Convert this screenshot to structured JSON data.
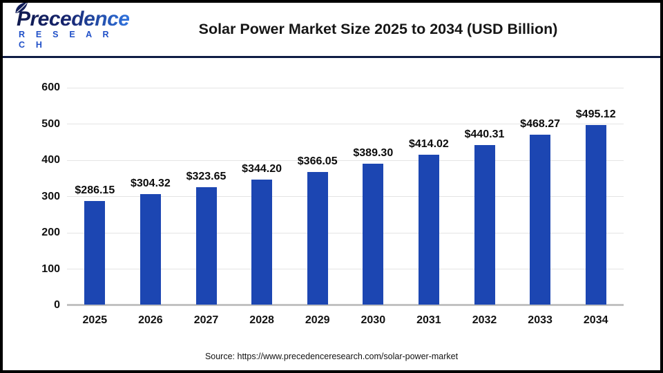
{
  "header": {
    "logo_line1": "Precedence",
    "logo_line2": "R E S E A R C H",
    "title": "Solar Power Market Size 2025 to 2034 (USD Billion)"
  },
  "chart_data": {
    "type": "bar",
    "title": "Solar Power Market Size 2025 to 2034 (USD Billion)",
    "categories": [
      "2025",
      "2026",
      "2027",
      "2028",
      "2029",
      "2030",
      "2031",
      "2032",
      "2033",
      "2034"
    ],
    "values": [
      286.15,
      304.32,
      323.65,
      344.2,
      366.05,
      389.3,
      414.02,
      440.31,
      468.27,
      495.12
    ],
    "value_labels": [
      "$286.15",
      "$304.32",
      "$323.65",
      "$344.20",
      "$366.05",
      "$389.30",
      "$414.02",
      "$440.31",
      "$468.27",
      "$495.12"
    ],
    "xlabel": "",
    "ylabel": "",
    "ylim": [
      0,
      600
    ],
    "ytick_step": 100,
    "ytick_labels": [
      "0",
      "100",
      "200",
      "300",
      "400",
      "500",
      "600"
    ],
    "grid": true,
    "legend": "none",
    "bar_color": "#1C46B2"
  },
  "footer": {
    "source": "Source: https://www.precedenceresearch.com/solar-power-market"
  },
  "colors": {
    "bar": "#1C46B2",
    "header_rule": "#0F1C44",
    "logo_dark": "#101A4E",
    "logo_light": "#2F73DF",
    "research_blue": "#2050C8",
    "gridline": "#E4E4E4",
    "axis_line": "#C1C1C1",
    "text": "#111111"
  }
}
